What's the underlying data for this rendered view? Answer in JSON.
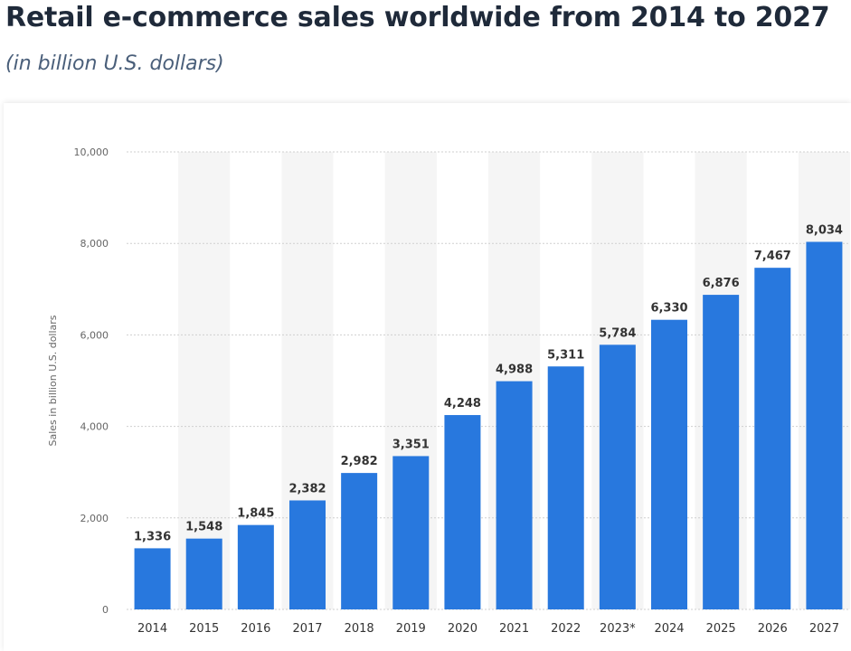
{
  "title": "Retail e-commerce sales worldwide from 2014 to 2027",
  "subtitle": "(in billion U.S. dollars)",
  "colors": {
    "bar": "#2878de",
    "stripe": "#f5f5f5",
    "grid": "#cfcfcf",
    "text": "#333333",
    "axis": "#666666"
  },
  "chart_data": {
    "type": "bar",
    "categories": [
      "2014",
      "2015",
      "2016",
      "2017",
      "2018",
      "2019",
      "2020",
      "2021",
      "2022",
      "2023*",
      "2024",
      "2025",
      "2026",
      "2027"
    ],
    "values": [
      1336,
      1548,
      1845,
      2382,
      2982,
      3351,
      4248,
      4988,
      5311,
      5784,
      6330,
      6876,
      7467,
      8034
    ],
    "value_labels": [
      "1,336",
      "1,548",
      "1,845",
      "2,382",
      "2,982",
      "3,351",
      "4,248",
      "4,988",
      "5,311",
      "5,784",
      "6,330",
      "6,876",
      "7,467",
      "8,034"
    ],
    "ylabel": "Sales in billion U.S. dollars",
    "xlabel": "",
    "ylim": [
      0,
      10000
    ],
    "yticks": [
      0,
      2000,
      4000,
      6000,
      8000,
      10000
    ],
    "ytick_labels": [
      "0",
      "2,000",
      "4,000",
      "6,000",
      "8,000",
      "10,000"
    ],
    "grid": true,
    "legend": "none"
  }
}
